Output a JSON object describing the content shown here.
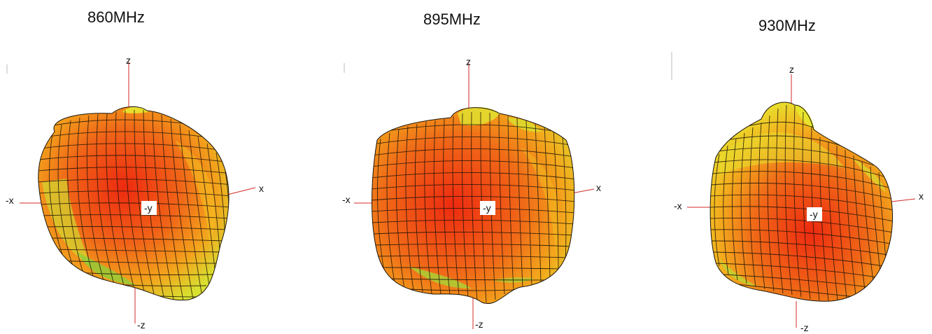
{
  "panels": [
    {
      "id": "p860",
      "title": "860MHz"
    },
    {
      "id": "p895",
      "title": "895MHz"
    },
    {
      "id": "p930",
      "title": "930MHz"
    }
  ],
  "axis_labels": {
    "z": "z",
    "neg_z": "-z",
    "x": "x",
    "neg_x": "-x",
    "neg_y": "-y"
  },
  "colors": {
    "hot": "#ee2a10",
    "mid": "#f07a1a",
    "warm": "#f5b81e",
    "cool": "#e6e830",
    "edge": "#8fce3a",
    "mesh": "#1a1208",
    "axis": "#d42a2a"
  }
}
